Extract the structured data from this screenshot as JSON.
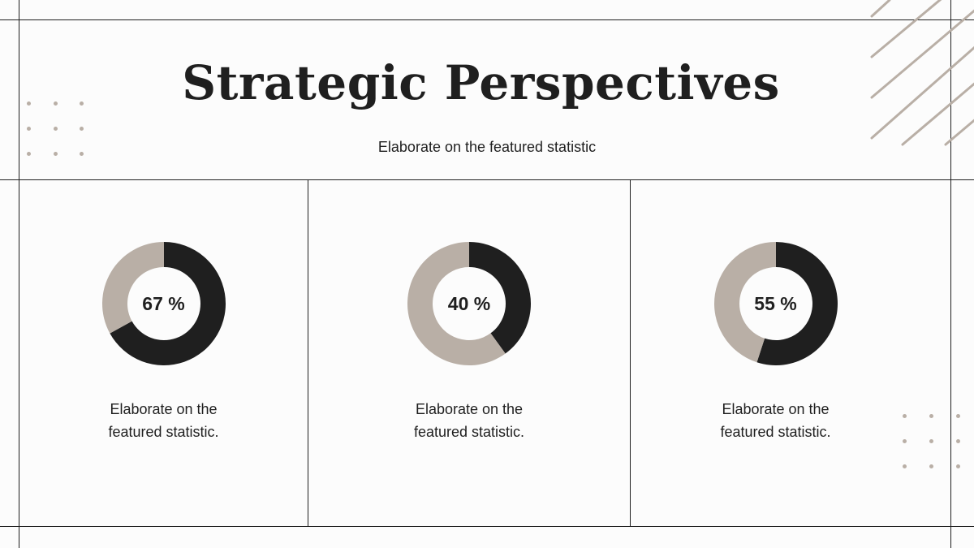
{
  "title": "Strategic Perspectives",
  "subtitle": "Elaborate on the featured statistic",
  "colors": {
    "dark": "#1f1f1f",
    "accent": "#b9afa6",
    "background": "#fcfcfc"
  },
  "chart_data": [
    {
      "type": "pie",
      "style": "donut",
      "values": [
        67,
        33
      ],
      "label": "67 %",
      "caption_line1": "Elaborate on the",
      "caption_line2": "featured statistic."
    },
    {
      "type": "pie",
      "style": "donut",
      "values": [
        40,
        60
      ],
      "label": "40 %",
      "caption_line1": "Elaborate on the",
      "caption_line2": "featured statistic."
    },
    {
      "type": "pie",
      "style": "donut",
      "values": [
        55,
        45
      ],
      "label": "55 %",
      "caption_line1": "Elaborate on the",
      "caption_line2": "featured statistic."
    }
  ]
}
